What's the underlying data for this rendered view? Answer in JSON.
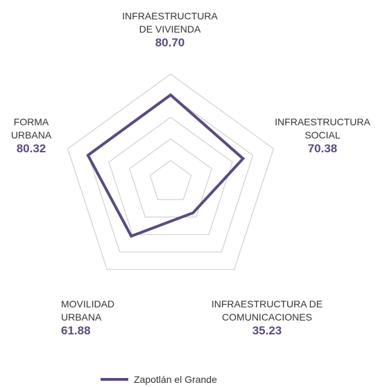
{
  "chart_data": {
    "type": "radar",
    "categories": [
      "INFRAESTRUCTURA DE VIVIENDA",
      "INFRAESTRUCTURA SOCIAL",
      "INFRAESTRUCTURA DE COMUNICACIONES",
      "MOVILIDAD URBANA",
      "FORMA URBANA"
    ],
    "series": [
      {
        "name": "Zapotlán el Grande",
        "color": "#5b4a7e",
        "values": [
          80.7,
          70.38,
          35.23,
          61.88,
          80.32
        ],
        "value_labels": [
          "80.70",
          "70.38",
          "35.23",
          "61.88",
          "80.32"
        ]
      }
    ],
    "rlim": [
      0,
      100
    ],
    "rticks": [
      20,
      40,
      60,
      80,
      100
    ],
    "grid": true,
    "legend": "bottom"
  }
}
